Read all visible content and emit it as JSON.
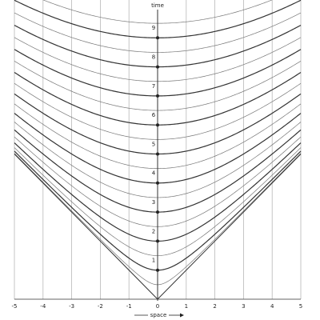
{
  "axes": {
    "x_label": "space",
    "y_label": "time",
    "x_ticks": [
      "-5",
      "-4",
      "-3",
      "-2",
      "-1",
      "0",
      "1",
      "2",
      "3",
      "4",
      "5"
    ],
    "time_labels": [
      "1",
      "2",
      "3",
      "4",
      "5",
      "6",
      "7",
      "8",
      "9"
    ]
  },
  "chart_data": {
    "type": "line",
    "xlabel": "space",
    "ylabel": "time",
    "xlim": [
      -5,
      5
    ],
    "ylim": [
      0,
      10
    ],
    "x_ticks": [
      -5,
      -4,
      -3,
      -2,
      -1,
      0,
      1,
      2,
      3,
      4,
      5
    ],
    "y_labeled_points": [
      1,
      2,
      3,
      4,
      5,
      6,
      7,
      8,
      9
    ],
    "hyperbola_params": [
      0.5,
      1,
      1.5,
      2,
      2.5,
      3,
      3.5,
      4,
      4.5,
      5,
      5.5,
      6,
      6.5,
      7,
      7.5,
      8,
      8.5,
      9,
      9.5
    ],
    "bold_params": [
      1,
      2,
      3,
      4,
      5,
      6,
      7,
      8,
      9
    ],
    "curve_equation": "t = sqrt(tau^2 + x^2)",
    "light_cone": true,
    "grid": "vertical lines at integer x"
  }
}
